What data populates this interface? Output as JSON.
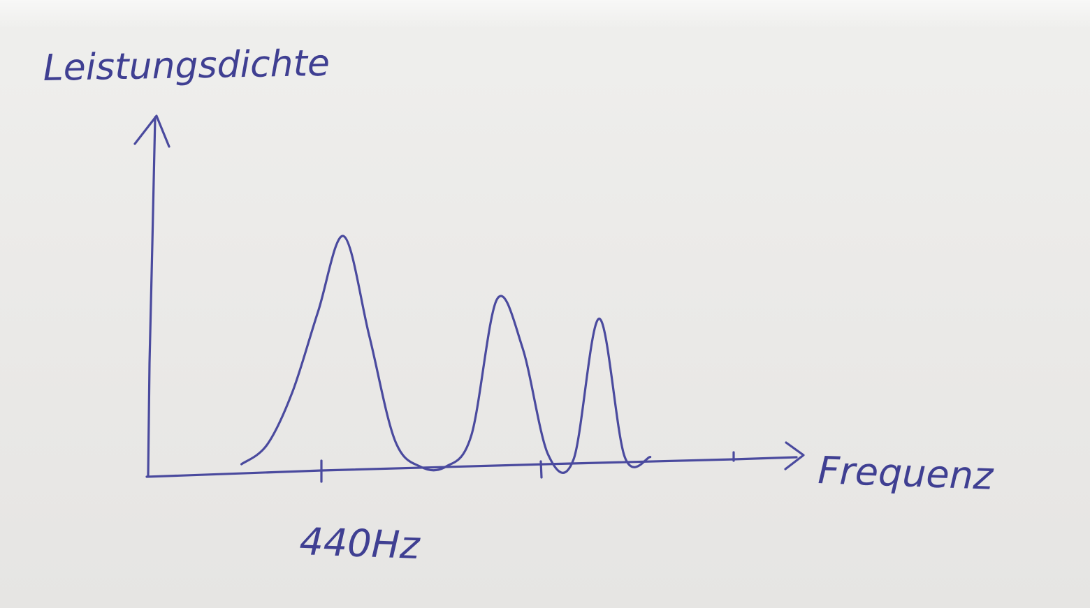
{
  "chart_data": {
    "type": "line",
    "ylabel": "Leistungsdichte",
    "xlabel": "Frequenz",
    "x_tick_labels": [
      "440Hz"
    ],
    "x": [
      0,
      0.25,
      0.5,
      0.75,
      1.0,
      1.25,
      1.5,
      1.75,
      2.0,
      2.25,
      2.5,
      2.75,
      3.0,
      3.25,
      3.5,
      3.75,
      4.0
    ],
    "y_relative": [
      0.02,
      0.1,
      0.32,
      0.65,
      0.96,
      0.55,
      0.12,
      0.01,
      0.01,
      0.14,
      0.7,
      0.5,
      0.06,
      0.04,
      0.62,
      0.05,
      0.05
    ],
    "ylim": [
      0,
      1.45
    ],
    "xlim": [
      -0.9,
      5.5
    ],
    "grid": false,
    "legend": "none"
  }
}
